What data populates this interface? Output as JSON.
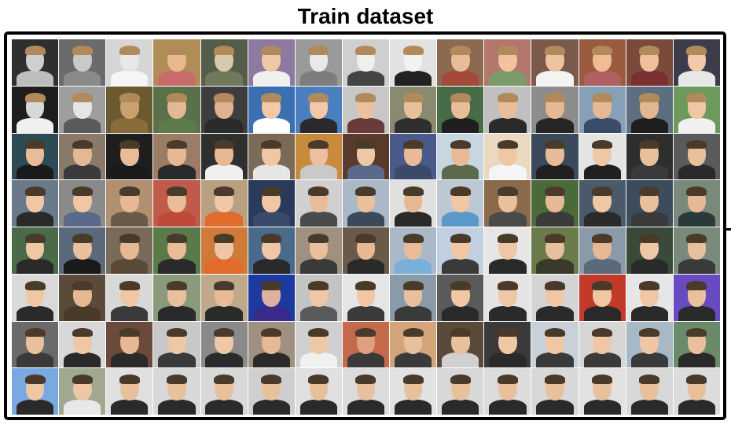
{
  "title": "Train dataset",
  "grid": {
    "rows": 8,
    "columns": 15,
    "row_palettes": [
      {
        "bg": [
          "#2f2f2f",
          "#6b6b6b",
          "#d6d6d6",
          "#b08d57",
          "#555c4a",
          "#8d7aa0",
          "#9a9a9a",
          "#cfcfcf",
          "#e2e2e2",
          "#8c6a4f",
          "#b3766a",
          "#7a5a4a",
          "#9b5b3f",
          "#7a4a3a",
          "#3c3c4a"
        ],
        "skin": [
          "#cfcfcf",
          "#c9c9c9",
          "#e8e8e8",
          "#e7b98c",
          "#d9c7b0",
          "#f0c8a8",
          "#e9e9e9",
          "#efefef",
          "#f2f2f2",
          "#e8bc98",
          "#f2c1a0",
          "#f0c3a0",
          "#efbc95",
          "#efbf9a",
          "#f0c8ac"
        ],
        "cloth": [
          "#bdbdbd",
          "#8a8a8a",
          "#f5f5f5",
          "#c96b6b",
          "#6f7a5c",
          "#f0f0f0",
          "#7d7d7d",
          "#444444",
          "#222222",
          "#a34a3a",
          "#7a9c6b",
          "#f3f3f3",
          "#b06060",
          "#7a3030",
          "#e8e8e8"
        ]
      },
      {
        "bg": [
          "#1e1e1e",
          "#9e9e9e",
          "#6b5a30",
          "#5a7048",
          "#3d3d3d",
          "#3b6fb0",
          "#4c7fc0",
          "#c7c7c7",
          "#8a8a70",
          "#466b46",
          "#c0c0c0",
          "#8c8c8c",
          "#87a0b8",
          "#5c6e80",
          "#6c9a5c"
        ],
        "skin": [
          "#d8d8d8",
          "#e5e5e5",
          "#c9a070",
          "#e4b894",
          "#e0b090",
          "#f2c8a6",
          "#f2c8a6",
          "#eac0a0",
          "#e9c09c",
          "#e8bd99",
          "#e8bd99",
          "#e6b994",
          "#e6b994",
          "#e3b692",
          "#efc7a4"
        ],
        "cloth": [
          "#f0f0f0",
          "#5a5a5a",
          "#8a6b3a",
          "#5c7a4a",
          "#2a2a2a",
          "#ffffff",
          "#2a2a2a",
          "#6a3a3a",
          "#2f2f2f",
          "#1f1f1f",
          "#2a2a2a",
          "#262626",
          "#3a4c6a",
          "#1e1e1e",
          "#f0f0f0"
        ]
      },
      {
        "bg": [
          "#2d4b55",
          "#8a7a6a",
          "#1e1e1e",
          "#9c7c64",
          "#2f2f2f",
          "#7c6a58",
          "#c88a3c",
          "#5a3a2a",
          "#4a5a8a",
          "#c7d7e2",
          "#ead9c0",
          "#3a4a5a",
          "#e4e4e4",
          "#2e2e2e",
          "#5a5a5a"
        ],
        "skin": [
          "#e8bc98",
          "#e4b894",
          "#e8bc98",
          "#e6b994",
          "#e6b994",
          "#efc7a4",
          "#ecc09e",
          "#efc7a4",
          "#e7bb97",
          "#e7bb97",
          "#efc7a4",
          "#e7bb97",
          "#efc7a4",
          "#e9c09c",
          "#e9c09c"
        ],
        "cloth": [
          "#1a1a1a",
          "#3a3a3a",
          "#1a1a1a",
          "#2a2a2a",
          "#f0f0f0",
          "#e6e6e6",
          "#c9c9c9",
          "#5a6a8a",
          "#3c4a6a",
          "#5a6a4a",
          "#f5f5f5",
          "#202020",
          "#202020",
          "#3a3a3a",
          "#2a2a2a"
        ]
      },
      {
        "bg": [
          "#6a7a8a",
          "#8a8a8a",
          "#b09070",
          "#c05a4a",
          "#b8a080",
          "#2a3a5a",
          "#d0d0d0",
          "#aab8c8",
          "#e0e0e0",
          "#bcc8d4",
          "#8a6a4a",
          "#4a6a3a",
          "#4a5a6a",
          "#3c4c5c",
          "#7a8a7a"
        ],
        "skin": [
          "#efc7a4",
          "#efc7a4",
          "#e6b994",
          "#e8bc98",
          "#efc7a4",
          "#efc7a4",
          "#e8bc98",
          "#e9c09c",
          "#e6b994",
          "#efc7a4",
          "#e9c09c",
          "#e6b994",
          "#efc7a4",
          "#e9c09c",
          "#e6b994"
        ],
        "cloth": [
          "#2a2a2a",
          "#5a6a8a",
          "#6a5a4a",
          "#c04a3a",
          "#e26a2a",
          "#3a4a6a",
          "#4a4a4a",
          "#3a4a5a",
          "#2a2a2a",
          "#5a9acb",
          "#4a4a4a",
          "#3a3a3a",
          "#2a2a2a",
          "#3a3a3a",
          "#2a3a3a"
        ]
      },
      {
        "bg": [
          "#4a6a4a",
          "#5a6a7a",
          "#7a6a5a",
          "#5a7a4a",
          "#d07a3a",
          "#4a6a8a",
          "#a09080",
          "#6a5a4a",
          "#aab8c8",
          "#c0d0e0",
          "#e6e6e6",
          "#6a7a4a",
          "#8a9aa8",
          "#3a4a3a",
          "#7a8a7a"
        ],
        "skin": [
          "#efc7a4",
          "#e9c09c",
          "#e6b994",
          "#e8bc98",
          "#efc7a4",
          "#efc7a4",
          "#e9c09c",
          "#e6b994",
          "#e8bc98",
          "#efc7a4",
          "#efc7a4",
          "#e9c09c",
          "#e6b994",
          "#efc7a4",
          "#e9c09c"
        ],
        "cloth": [
          "#2a2a2a",
          "#1a1a1a",
          "#5a4a3a",
          "#2a2a2a",
          "#e26a2a",
          "#2a2a2a",
          "#3a3a3a",
          "#2a2a2a",
          "#7ab0d8",
          "#3a3a3a",
          "#2a2a2a",
          "#3a3a2a",
          "#5a6a7a",
          "#2a2a2a",
          "#3a3a3a"
        ]
      },
      {
        "bg": [
          "#d9d9d9",
          "#5a4a3a",
          "#d8d8d8",
          "#8a9a7a",
          "#c0a88a",
          "#1c3aa0",
          "#c4c4c4",
          "#e6e6e6",
          "#8a9aa8",
          "#5a5a5a",
          "#e4e4e4",
          "#d4d4d4",
          "#c23a2a",
          "#e6e6e6",
          "#6a4ac0"
        ],
        "skin": [
          "#efc7a4",
          "#e6b994",
          "#efc7a4",
          "#e9c09c",
          "#e8bc98",
          "#e0b0a0",
          "#efc7a4",
          "#efc7a4",
          "#e9c09c",
          "#efc7a4",
          "#efc7a4",
          "#efc7a4",
          "#efc7a4",
          "#efc7a4",
          "#e9c09c"
        ],
        "cloth": [
          "#2a2a2a",
          "#4a3a2a",
          "#3a3a3a",
          "#2a2a2a",
          "#2a2a2a",
          "#3a2a8a",
          "#5a5a5a",
          "#3a3a3a",
          "#3a3a3a",
          "#2a2a2a",
          "#2a2a2a",
          "#2a2a2a",
          "#2a2a2a",
          "#2a2a2a",
          "#2a2a2a"
        ]
      },
      {
        "bg": [
          "#6a6a6a",
          "#d8d8d8",
          "#6a4a3a",
          "#c8c8c8",
          "#8a8a8a",
          "#a09080",
          "#d0d0d0",
          "#c46a4a",
          "#d4a47a",
          "#5a4a3a",
          "#3a3a3a",
          "#c8d0d8",
          "#d6d6d6",
          "#a8b8c4",
          "#6a8a6a"
        ],
        "skin": [
          "#e9c09c",
          "#efc7a4",
          "#e6b994",
          "#efc7a4",
          "#efc7a4",
          "#e6b994",
          "#efc7a4",
          "#e0a080",
          "#e9c09c",
          "#e9c09c",
          "#efc7a4",
          "#efc7a4",
          "#efc7a4",
          "#efc7a4",
          "#e9c09c"
        ],
        "cloth": [
          "#3a3a3a",
          "#2a2a2a",
          "#2a2a2a",
          "#3a3a3a",
          "#2a2a2a",
          "#2a2a2a",
          "#f0f0f0",
          "#3a3a3a",
          "#3a3a3a",
          "#d0d0d0",
          "#2a2a2a",
          "#3a3a3a",
          "#3a3a3a",
          "#3a3a3a",
          "#2a2a2a"
        ]
      },
      {
        "bg": [
          "#7aa8e0",
          "#a0a890",
          "#e0e0e0",
          "#d8d8d8",
          "#d8d8d8",
          "#cfcfcf",
          "#e0e0e0",
          "#dcdcdc",
          "#e2e2e2",
          "#d8d8d8",
          "#dcdcdc",
          "#d8d8d8",
          "#e2e2e2",
          "#d8d8d8",
          "#dcdcdc"
        ],
        "skin": [
          "#efc7a4",
          "#efc7a4",
          "#e9c09c",
          "#e9c09c",
          "#e9c09c",
          "#e9c09c",
          "#e9c09c",
          "#e9c09c",
          "#e9c09c",
          "#e9c09c",
          "#e9c09c",
          "#e9c09c",
          "#e9c09c",
          "#e9c09c",
          "#e9c09c"
        ],
        "cloth": [
          "#2a2a2a",
          "#e8e8e8",
          "#2a2a2a",
          "#2a2a2a",
          "#2a2a2a",
          "#2a2a2a",
          "#2a2a2a",
          "#2a2a2a",
          "#2a2a2a",
          "#2a2a2a",
          "#2a2a2a",
          "#2a2a2a",
          "#2a2a2a",
          "#2a2a2a",
          "#2a2a2a"
        ]
      }
    ]
  }
}
